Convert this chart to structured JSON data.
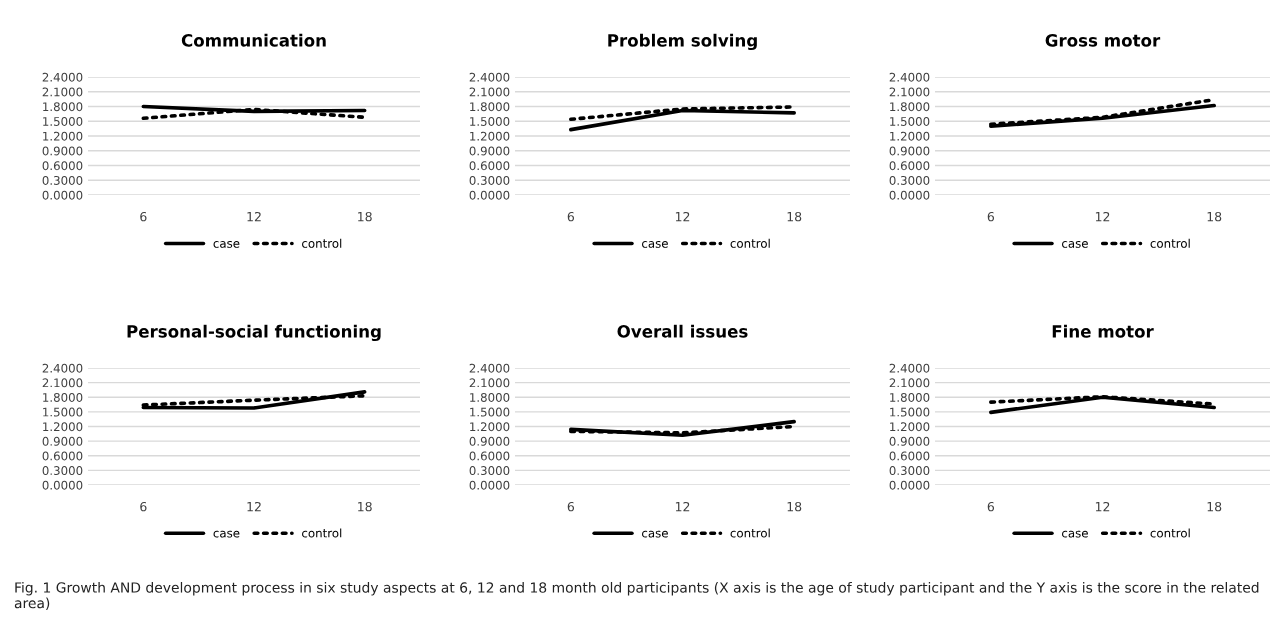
{
  "chart_data": [
    {
      "type": "line",
      "title": "Communication",
      "categories": [
        "6",
        "12",
        "18"
      ],
      "ylim": [
        0,
        2.4
      ],
      "yticks": [
        {
          "value": 0,
          "label": "0.0000"
        },
        {
          "value": 0.3,
          "label": "0.3000"
        },
        {
          "value": 0.6,
          "label": "0.6000"
        },
        {
          "value": 0.9,
          "label": "0.9000"
        },
        {
          "value": 1.2,
          "label": "1.2000"
        },
        {
          "value": 1.5,
          "label": "1.5000"
        },
        {
          "value": 1.8,
          "label": "1.8000"
        },
        {
          "value": 2.1,
          "label": "2.1000"
        },
        {
          "value": 2.4,
          "label": "2.4000"
        }
      ],
      "grid": "y",
      "legend": "bottom",
      "series": [
        {
          "name": "case",
          "color": "#000000",
          "line_style": "solid",
          "values": [
            1.8,
            1.7,
            1.72
          ]
        },
        {
          "name": "control",
          "color": "#000000",
          "line_style": "dotted",
          "values": [
            1.56,
            1.74,
            1.58
          ]
        }
      ]
    },
    {
      "type": "line",
      "title": "Problem solving",
      "categories": [
        "6",
        "12",
        "18"
      ],
      "ylim": [
        0,
        2.4
      ],
      "yticks": [
        {
          "value": 0,
          "label": "0.0000"
        },
        {
          "value": 0.3,
          "label": "0.3000"
        },
        {
          "value": 0.6,
          "label": "0.6000"
        },
        {
          "value": 0.9,
          "label": "0.9000"
        },
        {
          "value": 1.2,
          "label": "1.2000"
        },
        {
          "value": 1.5,
          "label": "1.5000"
        },
        {
          "value": 1.8,
          "label": "1.8000"
        },
        {
          "value": 2.1,
          "label": "2.1000"
        },
        {
          "value": 2.4,
          "label": "2.4000"
        }
      ],
      "grid": "y",
      "legend": "bottom",
      "series": [
        {
          "name": "case",
          "color": "#000000",
          "line_style": "solid",
          "values": [
            1.33,
            1.72,
            1.67
          ]
        },
        {
          "name": "control",
          "color": "#000000",
          "line_style": "dotted",
          "values": [
            1.54,
            1.75,
            1.79
          ]
        }
      ]
    },
    {
      "type": "line",
      "title": "Gross motor",
      "categories": [
        "6",
        "12",
        "18"
      ],
      "ylim": [
        0,
        2.4
      ],
      "yticks": [
        {
          "value": 0,
          "label": "0.0000"
        },
        {
          "value": 0.3,
          "label": "0.3000"
        },
        {
          "value": 0.6,
          "label": "0.6000"
        },
        {
          "value": 0.9,
          "label": "0.9000"
        },
        {
          "value": 1.2,
          "label": "1.2000"
        },
        {
          "value": 1.5,
          "label": "1.5000"
        },
        {
          "value": 1.8,
          "label": "1.8000"
        },
        {
          "value": 2.1,
          "label": "2.1000"
        },
        {
          "value": 2.4,
          "label": "2.4000"
        }
      ],
      "grid": "y",
      "legend": "bottom",
      "series": [
        {
          "name": "case",
          "color": "#000000",
          "line_style": "solid",
          "values": [
            1.4,
            1.56,
            1.82
          ]
        },
        {
          "name": "control",
          "color": "#000000",
          "line_style": "dotted",
          "values": [
            1.44,
            1.58,
            1.94
          ]
        }
      ]
    },
    {
      "type": "line",
      "title": "Personal-social functioning",
      "categories": [
        "6",
        "12",
        "18"
      ],
      "ylim": [
        0,
        2.4
      ],
      "yticks": [
        {
          "value": 0,
          "label": "0.0000"
        },
        {
          "value": 0.3,
          "label": "0.3000"
        },
        {
          "value": 0.6,
          "label": "0.6000"
        },
        {
          "value": 0.9,
          "label": "0.9000"
        },
        {
          "value": 1.2,
          "label": "1.2000"
        },
        {
          "value": 1.5,
          "label": "1.5000"
        },
        {
          "value": 1.8,
          "label": "1.8000"
        },
        {
          "value": 2.1,
          "label": "2.1000"
        },
        {
          "value": 2.4,
          "label": "2.4000"
        }
      ],
      "grid": "y",
      "legend": "bottom",
      "series": [
        {
          "name": "case",
          "color": "#000000",
          "line_style": "solid",
          "values": [
            1.59,
            1.58,
            1.91
          ]
        },
        {
          "name": "control",
          "color": "#000000",
          "line_style": "dotted",
          "values": [
            1.64,
            1.74,
            1.83
          ]
        }
      ]
    },
    {
      "type": "line",
      "title": "Overall issues",
      "categories": [
        "6",
        "12",
        "18"
      ],
      "ylim": [
        0,
        2.4
      ],
      "yticks": [
        {
          "value": 0,
          "label": "0.0000"
        },
        {
          "value": 0.3,
          "label": "0.3000"
        },
        {
          "value": 0.6,
          "label": "0.6000"
        },
        {
          "value": 0.9,
          "label": "0.9000"
        },
        {
          "value": 1.2,
          "label": "1.2000"
        },
        {
          "value": 1.5,
          "label": "1.5000"
        },
        {
          "value": 1.8,
          "label": "1.8000"
        },
        {
          "value": 2.1,
          "label": "2.1000"
        },
        {
          "value": 2.4,
          "label": "2.4000"
        }
      ],
      "grid": "y",
      "legend": "bottom",
      "series": [
        {
          "name": "case",
          "color": "#000000",
          "line_style": "solid",
          "values": [
            1.14,
            1.02,
            1.3
          ]
        },
        {
          "name": "control",
          "color": "#000000",
          "line_style": "dotted",
          "values": [
            1.1,
            1.07,
            1.2
          ]
        }
      ]
    },
    {
      "type": "line",
      "title": "Fine motor",
      "categories": [
        "6",
        "12",
        "18"
      ],
      "ylim": [
        0,
        2.4
      ],
      "yticks": [
        {
          "value": 0,
          "label": "0.0000"
        },
        {
          "value": 0.3,
          "label": "0.3000"
        },
        {
          "value": 0.6,
          "label": "0.6000"
        },
        {
          "value": 0.9,
          "label": "0.9000"
        },
        {
          "value": 1.2,
          "label": "1.2000"
        },
        {
          "value": 1.5,
          "label": "1.5000"
        },
        {
          "value": 1.8,
          "label": "1.8000"
        },
        {
          "value": 2.1,
          "label": "2.1000"
        },
        {
          "value": 2.4,
          "label": "2.4000"
        }
      ],
      "grid": "y",
      "legend": "bottom",
      "series": [
        {
          "name": "case",
          "color": "#000000",
          "line_style": "solid",
          "values": [
            1.49,
            1.8,
            1.59
          ]
        },
        {
          "name": "control",
          "color": "#000000",
          "line_style": "dotted",
          "values": [
            1.7,
            1.81,
            1.66
          ]
        }
      ],
      "annotations": [
        "Fig. 1 Growth AND development process in six study aspects at 6, 12 and 18 month old participants (X axis is the age of study participant and the Y axis is the score in the related area)"
      ]
    }
  ]
}
